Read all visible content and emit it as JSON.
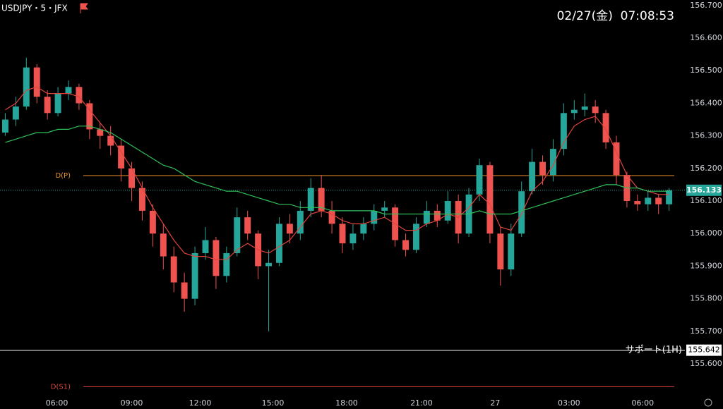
{
  "chart_data": {
    "type": "candlestick",
    "header": "USDJPY・5・JFX",
    "datetime": "02/27(金)  07:08:53",
    "up_color": "#26a69a",
    "down_color": "#ef5350",
    "open": [
      156.31,
      156.35,
      156.39,
      156.51,
      156.42,
      156.37,
      156.43,
      156.45,
      156.4,
      156.32,
      156.3,
      156.27,
      156.2,
      156.14,
      156.07,
      156.0,
      155.93,
      155.85,
      155.8,
      155.94,
      155.98,
      155.87,
      155.94,
      156.05,
      156.0,
      155.9,
      155.91,
      156.03,
      156.0,
      156.07,
      156.14,
      156.07,
      156.03,
      155.97,
      156.0,
      156.03,
      156.07,
      156.08,
      155.98,
      155.95,
      156.03,
      156.07,
      156.04,
      156.1,
      156.0,
      156.12,
      156.21,
      156.0,
      155.89,
      156.0,
      156.13,
      156.22,
      156.18,
      156.26,
      156.37,
      156.38,
      156.39,
      156.37,
      156.28,
      156.18,
      156.1,
      156.09,
      156.11,
      156.09
    ],
    "high": [
      156.37,
      156.42,
      156.54,
      156.52,
      156.44,
      156.45,
      156.47,
      156.46,
      156.41,
      156.34,
      156.33,
      156.29,
      156.22,
      156.16,
      156.09,
      156.03,
      155.96,
      155.88,
      155.96,
      156.02,
      155.99,
      155.96,
      156.08,
      156.07,
      156.01,
      155.95,
      156.05,
      156.06,
      156.1,
      156.17,
      156.18,
      156.1,
      156.05,
      156.03,
      156.05,
      156.09,
      156.1,
      156.09,
      156.0,
      156.05,
      156.1,
      156.09,
      156.13,
      156.12,
      156.14,
      156.23,
      156.22,
      156.02,
      156.03,
      156.16,
      156.26,
      156.24,
      156.29,
      156.4,
      156.41,
      156.43,
      156.41,
      156.38,
      156.3,
      156.19,
      156.12,
      156.13,
      156.12,
      156.14
    ],
    "low": [
      156.3,
      156.33,
      156.38,
      156.4,
      156.35,
      156.36,
      156.41,
      156.38,
      156.29,
      156.26,
      156.24,
      156.16,
      156.1,
      156.04,
      155.96,
      155.89,
      155.82,
      155.76,
      155.78,
      155.92,
      155.83,
      155.85,
      155.93,
      155.98,
      155.86,
      155.7,
      155.9,
      155.97,
      155.98,
      156.05,
      156.05,
      156.0,
      155.94,
      155.95,
      155.98,
      156.01,
      156.05,
      155.96,
      155.93,
      155.94,
      156.02,
      156.02,
      156.03,
      155.97,
      155.99,
      156.1,
      155.97,
      155.84,
      155.87,
      155.99,
      156.12,
      156.15,
      156.16,
      156.24,
      156.35,
      156.36,
      156.34,
      156.26,
      156.15,
      156.08,
      156.07,
      156.07,
      156.06,
      156.07
    ],
    "close": [
      156.35,
      156.39,
      156.51,
      156.42,
      156.37,
      156.43,
      156.45,
      156.4,
      156.32,
      156.3,
      156.27,
      156.2,
      156.14,
      156.07,
      156.0,
      155.93,
      155.85,
      155.8,
      155.94,
      155.98,
      155.87,
      155.94,
      156.05,
      156.0,
      155.9,
      155.91,
      156.03,
      156.0,
      156.07,
      156.14,
      156.07,
      156.03,
      155.97,
      156.0,
      156.03,
      156.07,
      156.08,
      155.98,
      155.95,
      156.03,
      156.07,
      156.04,
      156.1,
      156.0,
      156.12,
      156.21,
      156.0,
      155.89,
      156.0,
      156.13,
      156.22,
      156.18,
      156.26,
      156.37,
      156.38,
      156.39,
      156.37,
      156.28,
      156.18,
      156.1,
      156.09,
      156.11,
      156.09,
      156.133
    ],
    "moving_averages": [
      {
        "color": "#e0443c",
        "values": [
          156.38,
          156.4,
          156.44,
          156.45,
          156.43,
          156.43,
          156.43,
          156.42,
          156.38,
          156.34,
          156.3,
          156.25,
          156.2,
          156.14,
          156.08,
          156.03,
          155.98,
          155.94,
          155.93,
          155.93,
          155.92,
          155.92,
          155.95,
          155.97,
          155.95,
          155.94,
          155.96,
          155.98,
          156.02,
          156.06,
          156.07,
          156.06,
          156.04,
          156.03,
          156.03,
          156.04,
          156.05,
          156.03,
          156.01,
          156.01,
          156.03,
          156.04,
          156.06,
          156.05,
          156.08,
          156.12,
          156.09,
          156.02,
          156.01,
          156.06,
          156.13,
          156.16,
          156.21,
          156.28,
          156.33,
          156.35,
          156.36,
          156.32,
          156.25,
          156.18,
          156.14,
          156.13,
          156.12,
          156.12
        ]
      },
      {
        "color": "#2ec25a",
        "values": [
          156.28,
          156.29,
          156.3,
          156.31,
          156.31,
          156.32,
          156.32,
          156.33,
          156.33,
          156.32,
          156.31,
          156.29,
          156.27,
          156.25,
          156.23,
          156.21,
          156.2,
          156.18,
          156.16,
          156.15,
          156.14,
          156.13,
          156.13,
          156.12,
          156.11,
          156.1,
          156.09,
          156.09,
          156.08,
          156.08,
          156.08,
          156.07,
          156.07,
          156.07,
          156.07,
          156.07,
          156.06,
          156.06,
          156.06,
          156.06,
          156.06,
          156.06,
          156.06,
          156.06,
          156.06,
          156.07,
          156.06,
          156.06,
          156.06,
          156.07,
          156.08,
          156.09,
          156.1,
          156.11,
          156.12,
          156.13,
          156.14,
          156.15,
          156.15,
          156.14,
          156.14,
          156.13,
          156.13,
          156.13
        ]
      }
    ],
    "levels": [
      {
        "label": "D(P)",
        "value": 156.178,
        "color": "#f0902a"
      },
      {
        "label": "D(S1)",
        "value": 155.53,
        "color": "#e0443c"
      }
    ],
    "support": {
      "label": "サポート(1H)",
      "value": 155.642,
      "color": "#ffffff"
    },
    "last_price": 156.133,
    "xlim": [
      -0.5,
      64.5
    ],
    "xticks": [
      {
        "value": 4.9,
        "label": "06:00"
      },
      {
        "value": 12.0,
        "label": "09:00"
      },
      {
        "value": 18.5,
        "label": "12:00"
      },
      {
        "value": 25.4,
        "label": "15:00"
      },
      {
        "value": 32.4,
        "label": "18:00"
      },
      {
        "value": 39.5,
        "label": "21:00"
      },
      {
        "value": 46.5,
        "label": "27"
      },
      {
        "value": 53.5,
        "label": "03:00"
      },
      {
        "value": 60.5,
        "label": "06:00"
      }
    ],
    "ylim": [
      155.494,
      156.717
    ],
    "yticks": [
      {
        "value": 155.6,
        "label": "155.600"
      },
      {
        "value": 155.7,
        "label": "155.700"
      },
      {
        "value": 155.8,
        "label": "155.800"
      },
      {
        "value": 155.9,
        "label": "155.900"
      },
      {
        "value": 156.0,
        "label": "156.000"
      },
      {
        "value": 156.1,
        "label": "156.100"
      },
      {
        "value": 156.2,
        "label": "156.200"
      },
      {
        "value": 156.3,
        "label": "156.300"
      },
      {
        "value": 156.4,
        "label": "156.400"
      },
      {
        "value": 156.5,
        "label": "156.500"
      },
      {
        "value": 156.6,
        "label": "156.600"
      },
      {
        "value": 156.7,
        "label": "156.700"
      }
    ]
  }
}
